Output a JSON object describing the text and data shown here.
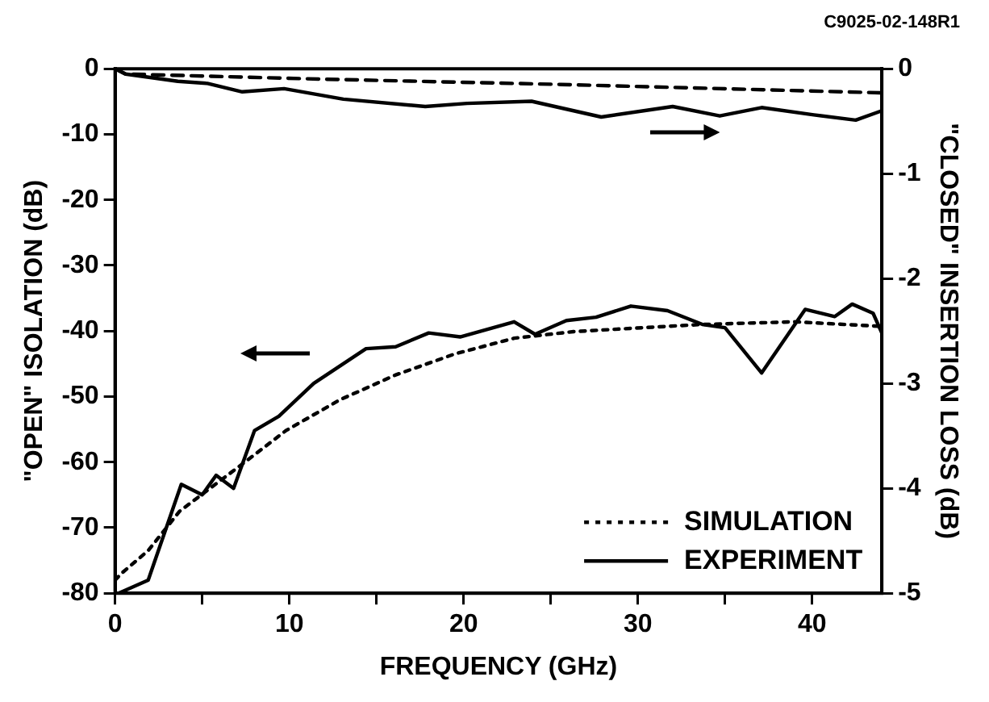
{
  "chart_data": {
    "type": "line",
    "xlabel": "FREQUENCY (GHz)",
    "ylabel": "\"OPEN\" ISOLATION (dB)",
    "y2label": "\"CLOSED\" INSERTION LOSS (dB)",
    "annotations": [
      "C9025-02-148R1"
    ],
    "xlim": [
      0,
      44
    ],
    "xticks": [
      0,
      {
        "value": 5,
        "label": null
      },
      10,
      {
        "value": 15,
        "label": null
      },
      20,
      {
        "value": 25,
        "label": null
      },
      30,
      {
        "value": 35,
        "label": null
      },
      40
    ],
    "ylim": [
      -80,
      0
    ],
    "yticks": [
      -80,
      -70,
      -60,
      -50,
      -40,
      -30,
      -20,
      -10,
      0
    ],
    "y2lim": [
      -5,
      0
    ],
    "y2ticks": [
      -5,
      -4,
      -3,
      -2,
      -1,
      0
    ],
    "grid": false,
    "legend": "bottom right",
    "marker": "none",
    "series": [
      {
        "name": "SIMULATION",
        "color": "#000000",
        "line_style": "dotted",
        "x": [
          0,
          0.4,
          1.9,
          3.7,
          5.4,
          7.5,
          9.8,
          12.9,
          16.1,
          19.5,
          22.9,
          26.3,
          29.6,
          33.7,
          39,
          44
        ],
        "values": [
          -78,
          -76.9,
          -73.5,
          -67.5,
          -64.1,
          -59.9,
          -55.2,
          -50.5,
          -46.7,
          -43.5,
          -41.1,
          -40.1,
          -39.6,
          -39,
          -38.6,
          -39.3
        ]
      },
      {
        "name": "EXPERIMENT",
        "color": "#000000",
        "line_style": "solid",
        "x": [
          0.2,
          1.9,
          3.8,
          5,
          5.8,
          6.8,
          8,
          9.4,
          11.4,
          14.4,
          16.1,
          18,
          19.8,
          22.9,
          24.1,
          25.9,
          27.6,
          29.6,
          31.7,
          33.7,
          35,
          37.1,
          39.6,
          41.3,
          42.3,
          43.5,
          44
        ],
        "values": [
          -80,
          -78,
          -63.4,
          -65,
          -62,
          -64,
          -55.2,
          -53,
          -48,
          -42.7,
          -42.4,
          -40.3,
          -40.9,
          -38.6,
          -40.5,
          -38.4,
          -37.9,
          -36.2,
          -36.9,
          -39,
          -39.5,
          -46.4,
          -36.7,
          -37.8,
          -35.9,
          -37.3,
          -40.3
        ]
      },
      {
        "color": "#000000",
        "line_style": "dashed",
        "axis": "y2",
        "x": [
          0,
          0.6,
          12.1,
          25.6,
          44
        ],
        "values": [
          0,
          -0.05,
          -0.1,
          -0.15,
          -0.23
        ]
      },
      {
        "color": "#000000",
        "line_style": "solid",
        "axis": "y2",
        "x": [
          0,
          0.6,
          3.6,
          5.3,
          7.3,
          9.7,
          13.1,
          17.8,
          20.2,
          23.9,
          27.9,
          32,
          34.7,
          37.1,
          40.1,
          42.5,
          44
        ],
        "values": [
          0,
          -0.05,
          -0.12,
          -0.14,
          -0.22,
          -0.19,
          -0.29,
          -0.36,
          -0.33,
          -0.31,
          -0.46,
          -0.36,
          -0.45,
          -0.37,
          -0.44,
          -0.49,
          -0.4
        ]
      }
    ]
  }
}
